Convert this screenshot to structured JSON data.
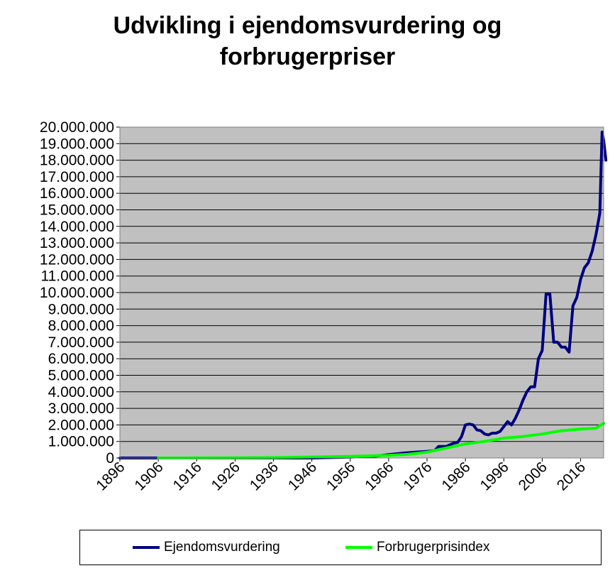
{
  "chart_data": {
    "type": "line",
    "title_line1": "Udvikling i ejendomsvurdering og",
    "title_line2": "forbrugerpriser",
    "xlabel": "",
    "ylabel": "",
    "xlim": [
      1896,
      2022
    ],
    "ylim": [
      0,
      20000000
    ],
    "x_ticks": [
      "1896",
      "1906",
      "1916",
      "1926",
      "1936",
      "1946",
      "1956",
      "1966",
      "1976",
      "1986",
      "1996",
      "2006",
      "2016"
    ],
    "y_ticks": [
      "0",
      "1.000.000",
      "2.000.000",
      "3.000.000",
      "4.000.000",
      "5.000.000",
      "6.000.000",
      "7.000.000",
      "8.000.000",
      "9.000.000",
      "10.000.000",
      "11.000.000",
      "12.000.000",
      "13.000.000",
      "14.000.000",
      "15.000.000",
      "16.000.000",
      "17.000.000",
      "18.000.000",
      "19.000.000",
      "20.000.000"
    ],
    "grid": true,
    "plot_background": "#c0c0c0",
    "legend_position": "bottom",
    "series": [
      {
        "name": "Ejendomsvurdering",
        "color": "#000080",
        "points": [
          [
            1896,
            0
          ],
          [
            1905,
            0
          ],
          [
            1906,
            0
          ],
          [
            1916,
            0
          ],
          [
            1926,
            0
          ],
          [
            1936,
            0
          ],
          [
            1946,
            0
          ],
          [
            1956,
            50000
          ],
          [
            1962,
            100000
          ],
          [
            1966,
            200000
          ],
          [
            1970,
            300000
          ],
          [
            1973,
            350000
          ],
          [
            1976,
            400000
          ],
          [
            1978,
            450000
          ],
          [
            1979,
            700000
          ],
          [
            1981,
            700000
          ],
          [
            1982,
            800000
          ],
          [
            1983,
            900000
          ],
          [
            1984,
            950000
          ],
          [
            1985,
            1300000
          ],
          [
            1986,
            2000000
          ],
          [
            1987,
            2050000
          ],
          [
            1988,
            2000000
          ],
          [
            1989,
            1700000
          ],
          [
            1990,
            1650000
          ],
          [
            1991,
            1450000
          ],
          [
            1992,
            1400000
          ],
          [
            1993,
            1500000
          ],
          [
            1994,
            1500000
          ],
          [
            1995,
            1600000
          ],
          [
            1996,
            1900000
          ],
          [
            1997,
            2200000
          ],
          [
            1998,
            2000000
          ],
          [
            1999,
            2400000
          ],
          [
            2000,
            2900000
          ],
          [
            2001,
            3500000
          ],
          [
            2002,
            4000000
          ],
          [
            2003,
            4300000
          ],
          [
            2004,
            4300000
          ],
          [
            2005,
            6000000
          ],
          [
            2006,
            6500000
          ],
          [
            2007,
            9900000
          ],
          [
            2008,
            9900000
          ],
          [
            2009,
            7000000
          ],
          [
            2010,
            7000000
          ],
          [
            2011,
            6700000
          ],
          [
            2012,
            6700000
          ],
          [
            2013,
            6400000
          ],
          [
            2014,
            9200000
          ],
          [
            2015,
            9700000
          ],
          [
            2016,
            10800000
          ],
          [
            2017,
            11500000
          ],
          [
            2018,
            11800000
          ],
          [
            2019,
            12500000
          ],
          [
            2020,
            13500000
          ],
          [
            2021,
            14800000
          ],
          [
            2021.6,
            19700000
          ],
          [
            2022,
            19200000
          ],
          [
            2022.6,
            18000000
          ]
        ]
      },
      {
        "name": "Forbrugerprisindex",
        "color": "#00ff00",
        "points": [
          [
            1906,
            0
          ],
          [
            1916,
            5000
          ],
          [
            1926,
            10000
          ],
          [
            1936,
            20000
          ],
          [
            1946,
            60000
          ],
          [
            1956,
            100000
          ],
          [
            1966,
            160000
          ],
          [
            1971,
            220000
          ],
          [
            1976,
            350000
          ],
          [
            1981,
            600000
          ],
          [
            1986,
            850000
          ],
          [
            1991,
            1000000
          ],
          [
            1996,
            1200000
          ],
          [
            2001,
            1300000
          ],
          [
            2006,
            1450000
          ],
          [
            2011,
            1650000
          ],
          [
            2016,
            1750000
          ],
          [
            2020,
            1800000
          ],
          [
            2022,
            2100000
          ]
        ]
      }
    ]
  }
}
